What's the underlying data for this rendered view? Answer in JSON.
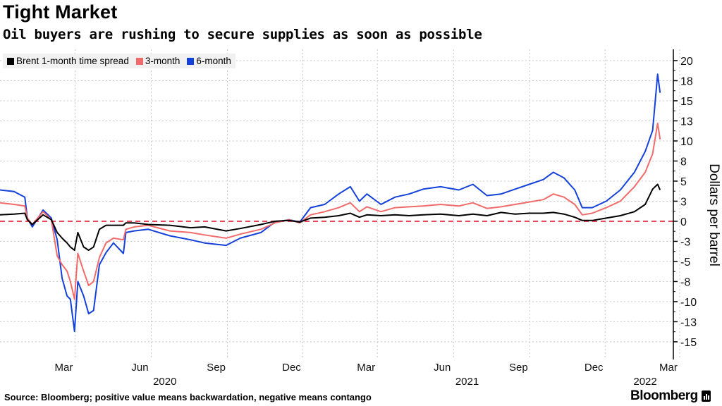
{
  "header": {
    "title": "Tight Market",
    "subtitle": "Oil buyers are rushing to secure supplies as soon as possible"
  },
  "footer": {
    "source": "Source: Bloomberg; positive value means backwardation, negative means contango",
    "brand": "Bloomberg"
  },
  "chart_data": {
    "type": "line",
    "title": "Tight Market",
    "subtitle": "Oil buyers are rushing to secure supplies as soon as possible",
    "xlabel": "",
    "ylabel": "Dollars per barrel",
    "ylim": [
      -17.2,
      21.4
    ],
    "xlim": [
      "2019-12-15",
      "2022-03-07"
    ],
    "y_axis_side": "right",
    "grid": true,
    "legend_position": "top-left",
    "reference_line": {
      "value": 0,
      "style": "dashed",
      "color": "#e8334a"
    },
    "y_ticks": [
      {
        "value": 20,
        "label": "20"
      },
      {
        "value": 17.5,
        "label": "18"
      },
      {
        "value": 15,
        "label": "15"
      },
      {
        "value": 12.5,
        "label": "13"
      },
      {
        "value": 10,
        "label": "10"
      },
      {
        "value": 7.5,
        "label": "8"
      },
      {
        "value": 5,
        "label": "5"
      },
      {
        "value": 2.5,
        "label": "3"
      },
      {
        "value": 0,
        "label": "0"
      },
      {
        "value": -2.5,
        "label": "-3"
      },
      {
        "value": -5,
        "label": "-5"
      },
      {
        "value": -7.5,
        "label": "-8"
      },
      {
        "value": -10,
        "label": "-10"
      },
      {
        "value": -12.5,
        "label": "-13"
      },
      {
        "value": -15,
        "label": "-15"
      }
    ],
    "x_ticks": [
      {
        "date": "2020-03-01",
        "label": "Mar"
      },
      {
        "date": "2020-06-01",
        "label": "Jun"
      },
      {
        "date": "2020-09-01",
        "label": "Sep"
      },
      {
        "date": "2020-12-01",
        "label": "Dec"
      },
      {
        "date": "2021-03-01",
        "label": "Mar"
      },
      {
        "date": "2021-06-01",
        "label": "Jun"
      },
      {
        "date": "2021-09-01",
        "label": "Sep"
      },
      {
        "date": "2021-12-01",
        "label": "Dec"
      },
      {
        "date": "2022-03-01",
        "label": "Mar"
      }
    ],
    "year_labels": [
      {
        "date": "2020-07-01",
        "label": "2020"
      },
      {
        "date": "2021-07-01",
        "label": "2021"
      },
      {
        "date": "2022-02-01",
        "label": "2022"
      }
    ],
    "x": [
      "2019-12-15",
      "2020-01-01",
      "2020-01-14",
      "2020-01-17",
      "2020-01-23",
      "2020-02-05",
      "2020-02-15",
      "2020-02-22",
      "2020-02-28",
      "2020-03-05",
      "2020-03-09",
      "2020-03-14",
      "2020-03-18",
      "2020-03-25",
      "2020-03-31",
      "2020-04-06",
      "2020-04-13",
      "2020-04-21",
      "2020-04-30",
      "2020-05-12",
      "2020-05-15",
      "2020-05-25",
      "2020-06-11",
      "2020-07-07",
      "2020-08-01",
      "2020-08-18",
      "2020-09-13",
      "2020-09-30",
      "2020-10-25",
      "2020-11-11",
      "2020-11-28",
      "2020-12-11",
      "2020-12-24",
      "2021-01-10",
      "2021-01-27",
      "2021-02-10",
      "2021-02-21",
      "2021-03-02",
      "2021-03-19",
      "2021-04-05",
      "2021-04-22",
      "2021-05-09",
      "2021-05-30",
      "2021-06-21",
      "2021-07-08",
      "2021-07-25",
      "2021-08-11",
      "2021-08-28",
      "2021-09-14",
      "2021-10-01",
      "2021-10-13",
      "2021-10-26",
      "2021-11-08",
      "2021-11-17",
      "2021-11-29",
      "2021-12-16",
      "2022-01-02",
      "2022-01-19",
      "2022-02-01",
      "2022-02-10",
      "2022-02-16",
      "2022-02-19"
    ],
    "series": [
      {
        "name": "Brent 1-month time spread",
        "color": "#000000",
        "values": [
          0.8,
          0.9,
          1.0,
          0.2,
          -0.4,
          0.8,
          0.2,
          -1.4,
          -2.1,
          -2.7,
          -3.2,
          -3.6,
          -1.4,
          -3.2,
          -3.6,
          -3.2,
          -1.0,
          -0.5,
          -0.5,
          -0.5,
          -0.2,
          -0.2,
          -0.4,
          -0.5,
          -0.8,
          -0.7,
          -1.2,
          -0.9,
          -0.4,
          0.0,
          0.1,
          -0.1,
          0.4,
          0.5,
          0.7,
          1.0,
          0.5,
          0.8,
          0.7,
          0.8,
          0.7,
          0.8,
          0.9,
          0.7,
          0.9,
          0.7,
          1.1,
          0.9,
          1.0,
          1.0,
          1.1,
          0.9,
          0.5,
          0.1,
          0.1,
          0.4,
          0.7,
          1.2,
          2.1,
          4.0,
          4.6,
          3.9
        ]
      },
      {
        "name": "3-month",
        "color": "#f26b6b",
        "values": [
          2.3,
          2.1,
          1.9,
          0.4,
          -0.4,
          1.2,
          0.2,
          -4.3,
          -5.4,
          -6.2,
          -7.5,
          -9.7,
          -4.0,
          -6.2,
          -8.0,
          -7.5,
          -4.5,
          -2.7,
          -2.1,
          -2.3,
          -1.0,
          -0.7,
          -0.5,
          -1.2,
          -1.4,
          -1.7,
          -2.1,
          -1.6,
          -1.0,
          -0.2,
          0.2,
          -0.2,
          0.8,
          1.2,
          1.7,
          2.3,
          1.2,
          1.8,
          1.2,
          1.7,
          1.8,
          1.9,
          2.1,
          1.9,
          2.3,
          1.6,
          1.8,
          2.1,
          2.4,
          2.7,
          3.4,
          3.0,
          2.1,
          0.8,
          1.0,
          1.7,
          2.5,
          4.3,
          6.1,
          8.4,
          12.2,
          10.2
        ]
      },
      {
        "name": "6-month",
        "color": "#1441d9",
        "values": [
          3.9,
          3.7,
          3.0,
          0.4,
          -0.7,
          1.4,
          0.4,
          -2.3,
          -7.1,
          -9.3,
          -9.7,
          -13.7,
          -7.5,
          -9.3,
          -11.5,
          -11.1,
          -5.4,
          -3.9,
          -2.7,
          -4.0,
          -1.4,
          -1.2,
          -1.0,
          -1.8,
          -2.3,
          -2.7,
          -3.0,
          -2.1,
          -1.4,
          -0.1,
          0.2,
          -0.1,
          1.7,
          2.1,
          3.4,
          4.3,
          2.5,
          3.4,
          2.1,
          3.0,
          3.4,
          4.0,
          4.3,
          3.9,
          4.6,
          3.2,
          3.4,
          4.0,
          4.6,
          5.2,
          6.1,
          5.4,
          3.9,
          1.7,
          1.7,
          2.5,
          3.9,
          6.1,
          8.7,
          11.3,
          18.3,
          16.0
        ]
      }
    ]
  }
}
